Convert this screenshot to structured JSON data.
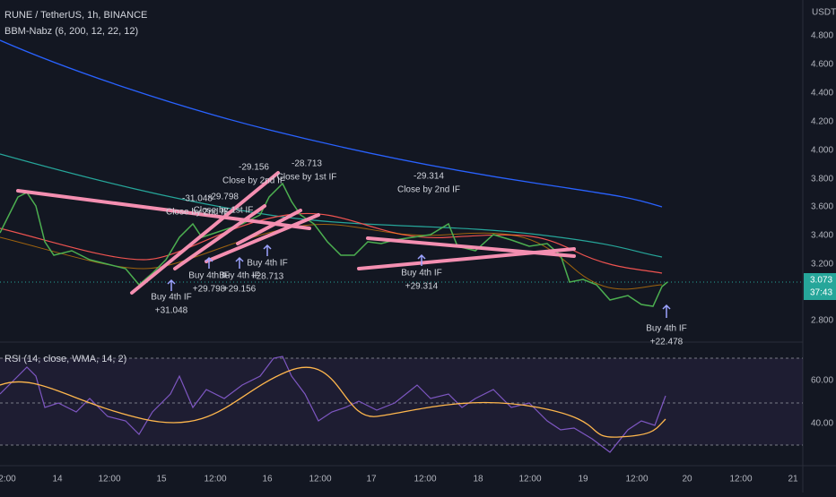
{
  "header": {
    "symbol": "RUNE / TetherUS, 1h, BINANCE",
    "indicator": "BBM-Nabz (6, 200, 12, 22, 12)",
    "currency": "USDT"
  },
  "price_axis": [
    "4.800",
    "4.600",
    "4.400",
    "4.200",
    "4.000",
    "3.800",
    "3.600",
    "3.400",
    "3.200",
    "2.800"
  ],
  "last_price": "3.073",
  "countdown": "37:43",
  "rsi": {
    "title": "RSI (14, close, WMA, 14, 2)",
    "axis": [
      "60.00",
      "40.00"
    ]
  },
  "time_axis": [
    "2:00",
    "14",
    "12:00",
    "15",
    "12:00",
    "16",
    "12:00",
    "17",
    "12:00",
    "18",
    "12:00",
    "19",
    "12:00",
    "20",
    "12:00",
    "21"
  ],
  "annotations": [
    [
      "-29.156",
      "Close by 2nd IF"
    ],
    [
      "-28.713",
      "Close by 1st IF"
    ],
    [
      "-31.048",
      "Close by 2nd IF"
    ],
    [
      "-29.798",
      "Close by 1st IF"
    ],
    [
      "-29.314",
      "Close by 2nd IF"
    ],
    [
      "Buy 4th IF",
      "+31.048"
    ],
    [
      "Buy 4th IF",
      "+29.798"
    ],
    [
      "Buy 4th IF",
      "+29.156"
    ],
    [
      "Buy 4th IF",
      "+28.713"
    ],
    [
      "Buy 4th IF",
      "+29.314"
    ],
    [
      "Buy 4th IF",
      "+22.478"
    ]
  ]
}
